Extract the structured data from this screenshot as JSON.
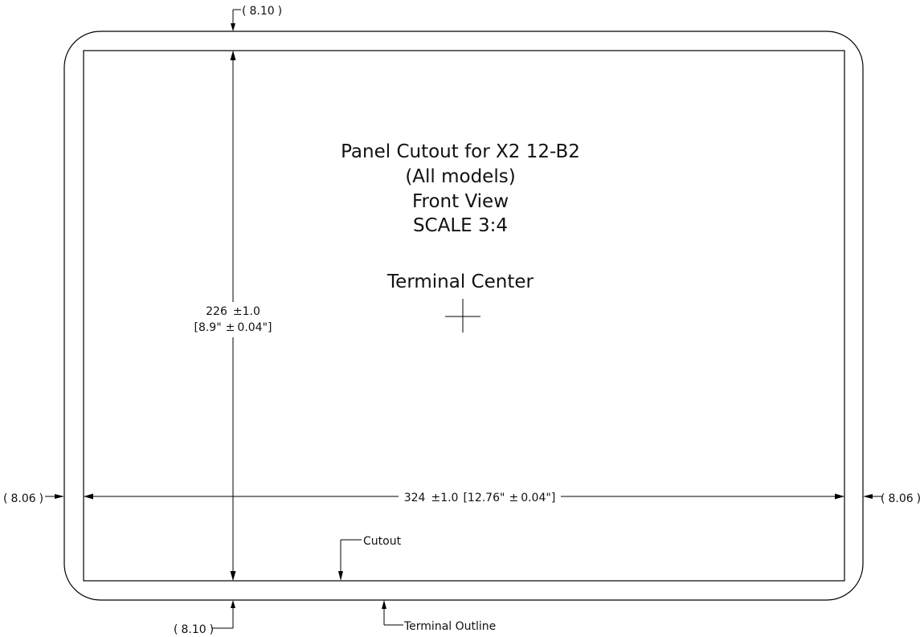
{
  "title": {
    "line1": "Panel Cutout for X2 12-B2",
    "line2": "(All models)",
    "line3": "Front View",
    "line4": "SCALE 3:4"
  },
  "terminal_center_label": "Terminal Center",
  "dimensions": {
    "height_mm": "226",
    "height_tol": "1.0",
    "height_in": "8.9\"",
    "height_in_tol": "0.04\"",
    "width_mm": "324",
    "width_tol": "1.0",
    "width_in": "12.76\"",
    "width_in_tol": "0.04\"",
    "margin_top": "8.10",
    "margin_bottom": "8.10",
    "margin_left": "8.06",
    "margin_right": "8.06"
  },
  "labels": {
    "cutout": "Cutout",
    "terminal_outline": "Terminal Outline"
  },
  "symbols": {
    "plus_minus": "±",
    "open_paren": "(",
    "close_paren": ")",
    "open_bracket": "[",
    "close_bracket": "]"
  }
}
